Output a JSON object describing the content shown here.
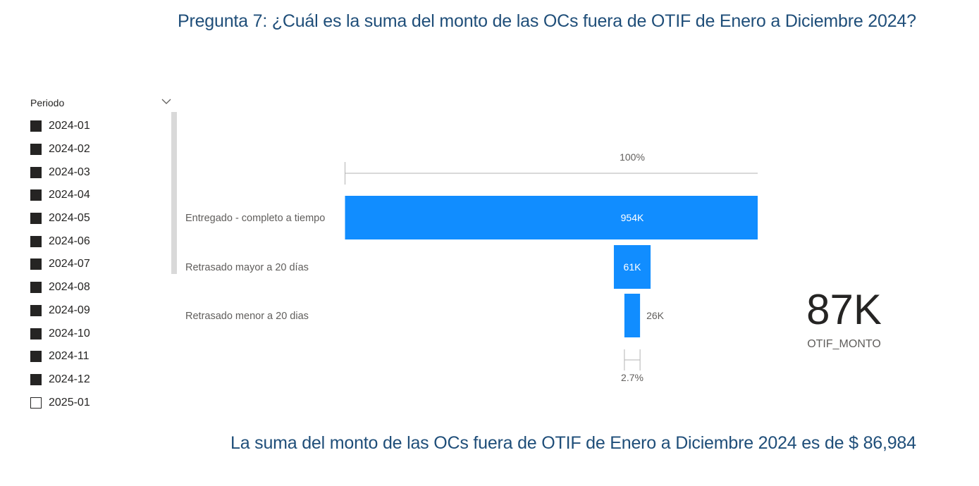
{
  "page": {
    "title": "Pregunta 7: ¿Cuál es la suma del monto de las OCs fuera de OTIF de Enero a Diciembre 2024?",
    "answer": "La suma del monto de las OCs fuera de OTIF de Enero a Diciembre 2024 es de  $ 86,984"
  },
  "slicer": {
    "header": "Periodo",
    "chevron_icon": "chevron-down-icon",
    "items": [
      {
        "label": "2024-01",
        "checked": true
      },
      {
        "label": "2024-02",
        "checked": true
      },
      {
        "label": "2024-03",
        "checked": true
      },
      {
        "label": "2024-04",
        "checked": true
      },
      {
        "label": "2024-05",
        "checked": true
      },
      {
        "label": "2024-06",
        "checked": true
      },
      {
        "label": "2024-07",
        "checked": true
      },
      {
        "label": "2024-08",
        "checked": true
      },
      {
        "label": "2024-09",
        "checked": true
      },
      {
        "label": "2024-10",
        "checked": true
      },
      {
        "label": "2024-11",
        "checked": true
      },
      {
        "label": "2024-12",
        "checked": true
      },
      {
        "label": "2025-01",
        "checked": false
      }
    ]
  },
  "chart_data": {
    "type": "funnel",
    "categories": [
      "Entregado - completo a tiempo",
      "Retrasado mayor a 20 días",
      "Retrasado menor a 20 dias"
    ],
    "values": [
      954000,
      61000,
      26000
    ],
    "data_labels": [
      "954K",
      "61K",
      "26K"
    ],
    "top_percent_label": "100%",
    "bottom_percent_label": "2.7%",
    "bar_color": "#118dff"
  },
  "kpi": {
    "value": "87K",
    "label": "OTIF_MONTO"
  }
}
